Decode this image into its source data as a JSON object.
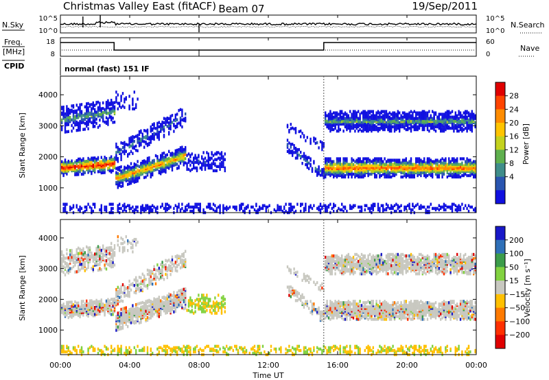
{
  "header": {
    "title": "Christmas Valley East (fitACF)",
    "beam": "Beam 07",
    "date": "19/Sep/2011"
  },
  "noise_panel": {
    "left_label": "N.Sky",
    "right_label": "N.Search",
    "left_ticks": [
      "10^5",
      "10^0"
    ],
    "right_ticks": [
      "10^5",
      "10^0"
    ]
  },
  "freq_panel": {
    "left_label_line1": "Freq.",
    "left_label_line2": "[MHz]",
    "right_label": "Nave",
    "left_ticks": [
      "18",
      "8"
    ],
    "right_ticks": [
      "60",
      "0"
    ],
    "freq_segments": [
      {
        "start": 0,
        "end": 3.1,
        "level": "high"
      },
      {
        "start": 3.1,
        "end": 15.2,
        "level": "low"
      },
      {
        "start": 15.2,
        "end": 24,
        "level": "high"
      }
    ]
  },
  "cpid": {
    "label": "CPID",
    "program": "normal (fast) 151 IF"
  },
  "chart_data": [
    {
      "type": "heatmap",
      "name": "power",
      "ylabel": "Slant Range [km]",
      "y_ticks": [
        "1000",
        "2000",
        "3000",
        "4000"
      ],
      "ylim": [
        200,
        4600
      ],
      "colorbar_label": "Power [dB]",
      "colorbar_ticks": [
        "4",
        "8",
        "12",
        "16",
        "20",
        "24",
        "28"
      ],
      "colors": [
        "#1010e0",
        "#2a55b0",
        "#3f8d8a",
        "#5fb04e",
        "#c4d21e",
        "#ffc400",
        "#ff8c00",
        "#ff4400",
        "#e00000"
      ]
    },
    {
      "type": "heatmap",
      "name": "velocity",
      "ylabel": "Slant Range [km]",
      "y_ticks": [
        "1000",
        "2000",
        "3000",
        "4000"
      ],
      "ylim": [
        200,
        4600
      ],
      "colorbar_label": "Velocity [m s⁻¹]",
      "colorbar_ticks": [
        "200",
        "100",
        "50",
        "15",
        "−15",
        "−50",
        "−100",
        "−200"
      ],
      "colors": [
        "#1818c8",
        "#2f70b8",
        "#3c9c4a",
        "#82d240",
        "#c8c8c0",
        "#ffc000",
        "#ff7a00",
        "#ff3000",
        "#e00000"
      ]
    }
  ],
  "x_axis": {
    "label": "Time UT",
    "ticks": [
      "00:00",
      "04:00",
      "08:00",
      "12:00",
      "16:00",
      "20:00",
      "00:00"
    ],
    "range_hours": [
      0,
      24
    ]
  }
}
